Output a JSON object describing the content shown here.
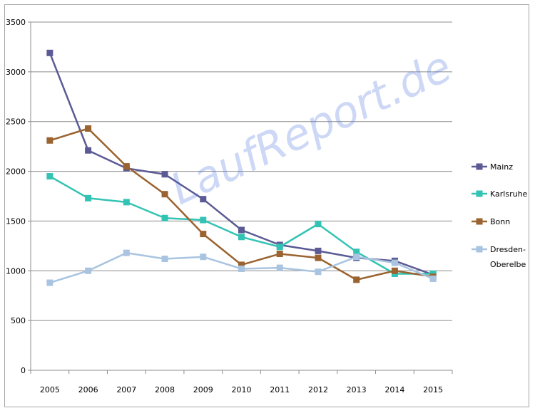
{
  "chart_data": {
    "type": "line",
    "categories": [
      "2005",
      "2006",
      "2007",
      "2008",
      "2009",
      "2010",
      "2011",
      "2012",
      "2013",
      "2014",
      "2015"
    ],
    "ylim": [
      0,
      3500
    ],
    "yticks": [
      0,
      500,
      1000,
      1500,
      2000,
      2500,
      3000,
      3500
    ],
    "grid": true,
    "legend_position": "right",
    "watermark": "LaufReport.de",
    "series": [
      {
        "name": "Mainz",
        "color": "#5b5a94",
        "values": [
          3190,
          2210,
          2030,
          1970,
          1720,
          1410,
          1260,
          1200,
          1130,
          1100,
          960
        ]
      },
      {
        "name": "Karlsruhe",
        "color": "#33c3b4",
        "values": [
          1950,
          1730,
          1690,
          1530,
          1510,
          1340,
          1240,
          1470,
          1190,
          970,
          970
        ]
      },
      {
        "name": "Bonn",
        "color": "#9a6330",
        "values": [
          2310,
          2430,
          2050,
          1770,
          1370,
          1060,
          1170,
          1130,
          910,
          1000,
          940
        ]
      },
      {
        "name": "Dresden-Oberelbe",
        "legend_lines": [
          "Dresden-",
          "Oberelbe"
        ],
        "color": "#a9c4e0",
        "values": [
          880,
          1000,
          1180,
          1120,
          1140,
          1020,
          1030,
          990,
          1140,
          1080,
          920
        ]
      }
    ]
  }
}
